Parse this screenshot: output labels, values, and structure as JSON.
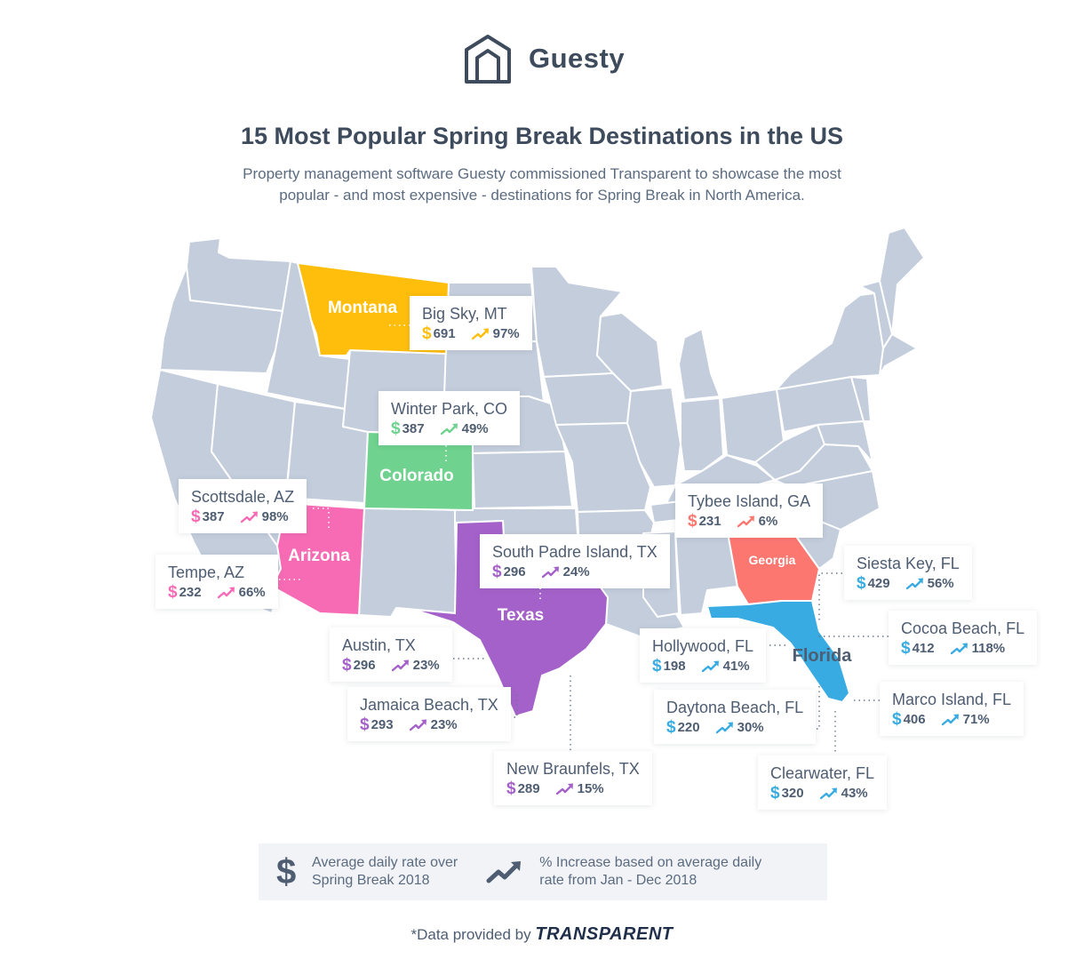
{
  "brand": {
    "name": "Guesty",
    "icon": "house-icon"
  },
  "header": {
    "title": "15 Most Popular Spring Break Destinations in the US",
    "subtitle_line1": "Property management software Guesty commissioned Transparent to showcase the most",
    "subtitle_line2": "popular - and most expensive - destinations for Spring Break in North America."
  },
  "states": [
    {
      "name": "Montana",
      "color": "#ffbe0b"
    },
    {
      "name": "Colorado",
      "color": "#6fd28e"
    },
    {
      "name": "Arizona",
      "color": "#f76bb5"
    },
    {
      "name": "Texas",
      "color": "#a461c9"
    },
    {
      "name": "Georgia",
      "color": "#fd7771"
    },
    {
      "name": "Florida",
      "color": "#38abe2"
    }
  ],
  "base_color": "#c3cddc",
  "destinations": [
    {
      "name": "Big Sky, MT",
      "state": "Montana",
      "rate": "691",
      "increase": "97%",
      "color": "#ffbe0b"
    },
    {
      "name": "Winter Park, CO",
      "state": "Colorado",
      "rate": "387",
      "increase": "49%",
      "color": "#6fd28e"
    },
    {
      "name": "Scottsdale, AZ",
      "state": "Arizona",
      "rate": "387",
      "increase": "98%",
      "color": "#f76bb5"
    },
    {
      "name": "Tempe, AZ",
      "state": "Arizona",
      "rate": "232",
      "increase": "66%",
      "color": "#f76bb5"
    },
    {
      "name": "South Padre Island, TX",
      "state": "Texas",
      "rate": "296",
      "increase": "24%",
      "color": "#a461c9"
    },
    {
      "name": "Austin, TX",
      "state": "Texas",
      "rate": "296",
      "increase": "23%",
      "color": "#a461c9"
    },
    {
      "name": "Jamaica Beach, TX",
      "state": "Texas",
      "rate": "293",
      "increase": "23%",
      "color": "#a461c9"
    },
    {
      "name": "New Braunfels, TX",
      "state": "Texas",
      "rate": "289",
      "increase": "15%",
      "color": "#a461c9"
    },
    {
      "name": "Tybee Island, GA",
      "state": "Georgia",
      "rate": "231",
      "increase": "6%",
      "color": "#fd7771"
    },
    {
      "name": "Siesta Key, FL",
      "state": "Florida",
      "rate": "429",
      "increase": "56%",
      "color": "#38abe2"
    },
    {
      "name": "Cocoa Beach, FL",
      "state": "Florida",
      "rate": "412",
      "increase": "118%",
      "color": "#38abe2"
    },
    {
      "name": "Hollywood, FL",
      "state": "Florida",
      "rate": "198",
      "increase": "41%",
      "color": "#38abe2"
    },
    {
      "name": "Marco Island, FL",
      "state": "Florida",
      "rate": "406",
      "increase": "71%",
      "color": "#38abe2"
    },
    {
      "name": "Daytona Beach, FL",
      "state": "Florida",
      "rate": "220",
      "increase": "30%",
      "color": "#38abe2"
    },
    {
      "name": "Clearwater, FL",
      "state": "Florida",
      "rate": "320",
      "increase": "43%",
      "color": "#38abe2"
    }
  ],
  "legend": {
    "dollar_symbol": "$",
    "rate_line1": "Average daily rate over",
    "rate_line2": "Spring Break 2018",
    "increase_line1": "% Increase based on average daily",
    "increase_line2": "rate from Jan - Dec 2018"
  },
  "credit": {
    "prefix": "*Data provided by",
    "brand": "TRANSPARENT"
  }
}
